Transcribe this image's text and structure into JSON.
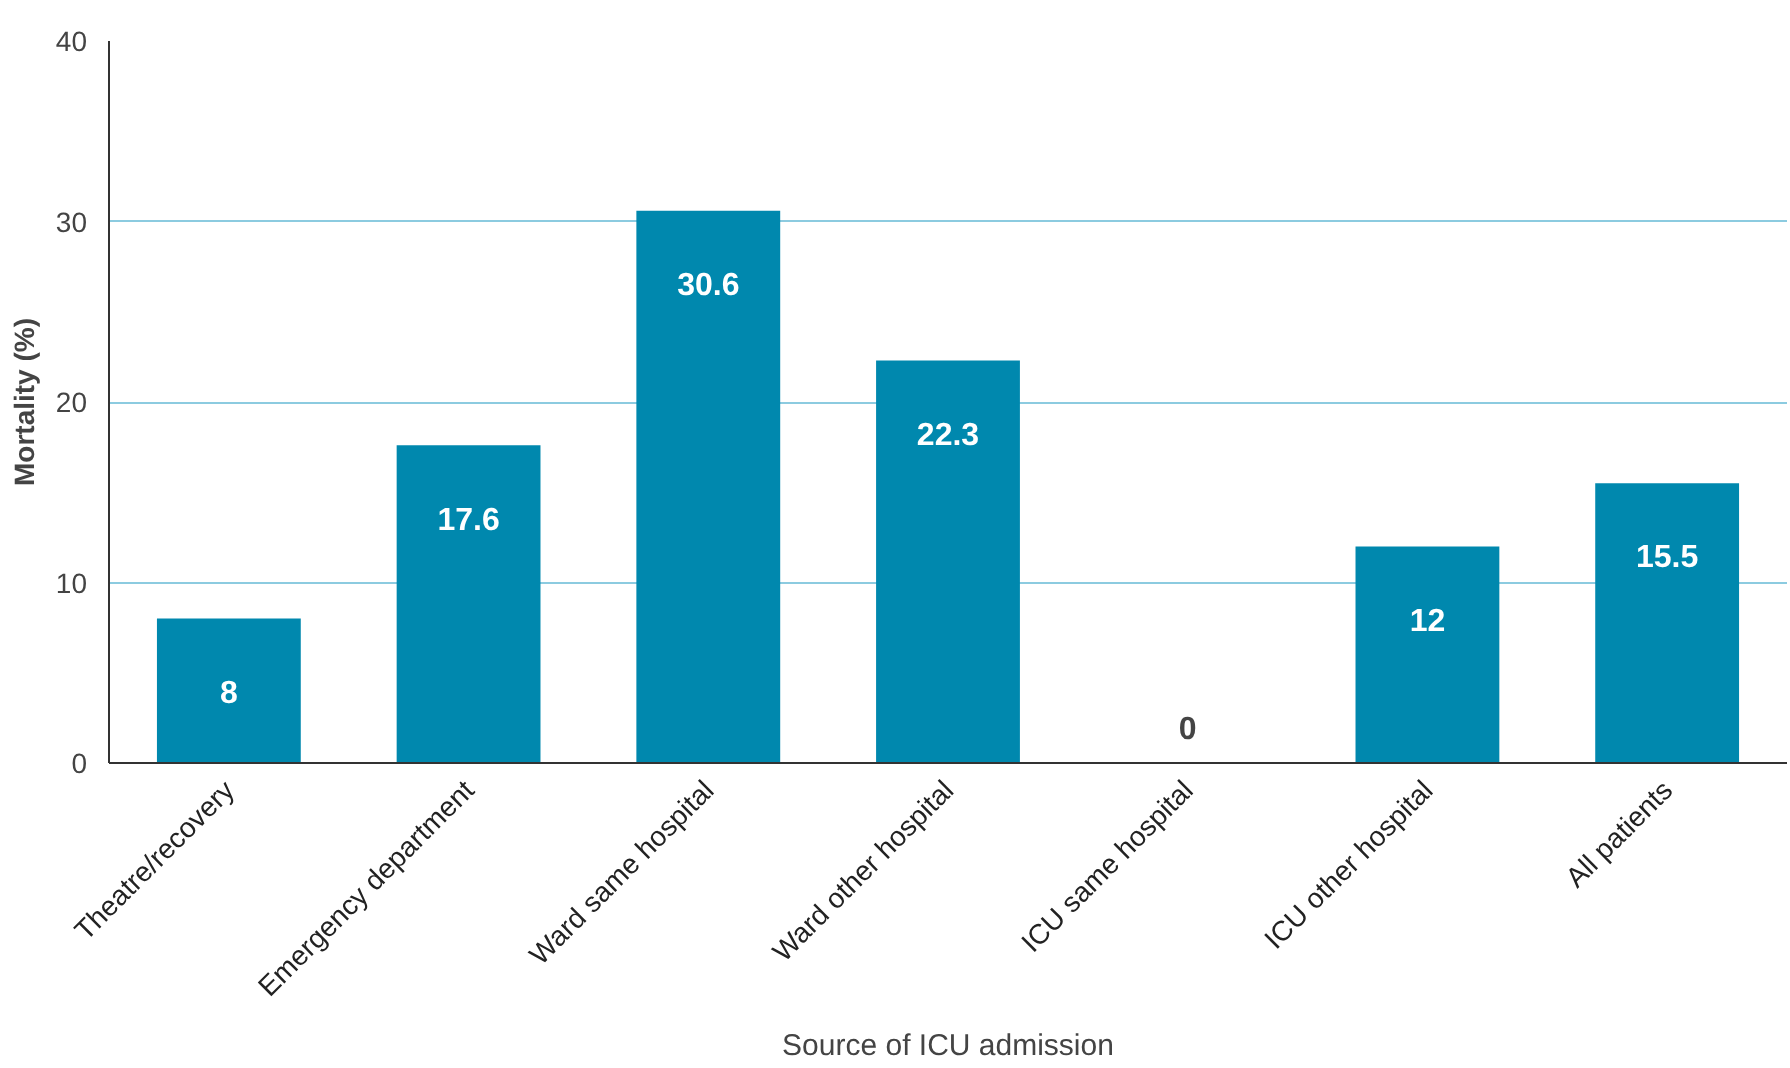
{
  "chart_data": {
    "type": "bar",
    "xlabel": "Source of ICU admission",
    "ylabel": "Mortality (%)",
    "categories": [
      "Theatre/recovery",
      "Emergency department",
      "Ward same hospital",
      "Ward other hospital",
      "ICU same hospital",
      "ICU other hospital",
      "All patients"
    ],
    "values": [
      8,
      17.6,
      30.6,
      22.3,
      0,
      12,
      15.5
    ],
    "value_labels": [
      "8",
      "17.6",
      "30.6",
      "22.3",
      "0",
      "12",
      "15.5"
    ],
    "color": "#0088ae",
    "ylim": [
      0,
      40
    ],
    "yticks": [
      0,
      10,
      20,
      30,
      40
    ],
    "grid": "y"
  }
}
